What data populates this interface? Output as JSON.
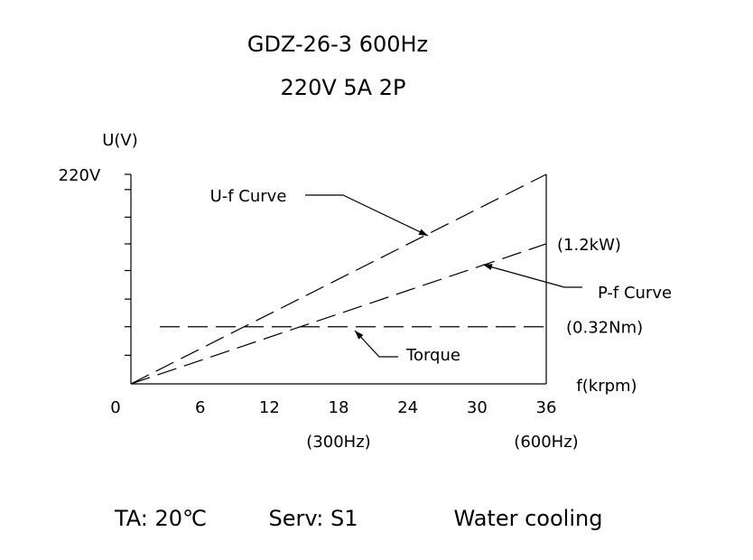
{
  "chart_data": {
    "type": "line",
    "title": "GDZ-26-3 600Hz",
    "subtitle": "220V 5A 2P",
    "y_label": "U(V)",
    "x_label": "f(krpm)",
    "xlim": [
      0,
      36
    ],
    "xticks": [
      0,
      6,
      12,
      18,
      24,
      30,
      36
    ],
    "x_sublabels": [
      {
        "value": 18,
        "label": "(300Hz)"
      },
      {
        "value": 36,
        "label": "(600Hz)"
      }
    ],
    "ylim": [
      0,
      220
    ],
    "yticks": [
      {
        "value": 220,
        "label": "220V"
      }
    ],
    "minor_yticks": [
      30,
      60,
      89,
      119,
      147,
      175,
      204
    ],
    "series": [
      {
        "name": "U-f Curve",
        "color": "#000000",
        "dashed": true,
        "x": [
          0,
          36
        ],
        "values": [
          0,
          220
        ]
      },
      {
        "name": "P-f Curve",
        "color": "#000000",
        "dashed": true,
        "x": [
          0,
          36
        ],
        "values": [
          0,
          147
        ],
        "end_label": "(1.2kW)"
      },
      {
        "name": "Torque",
        "color": "#000000",
        "dashed": true,
        "x": [
          2.5,
          36
        ],
        "values": [
          60,
          60
        ],
        "end_label": "(0.32Nm)"
      }
    ]
  },
  "footer": [
    "TA: 20℃",
    "Serv: S1",
    "Water cooling"
  ]
}
